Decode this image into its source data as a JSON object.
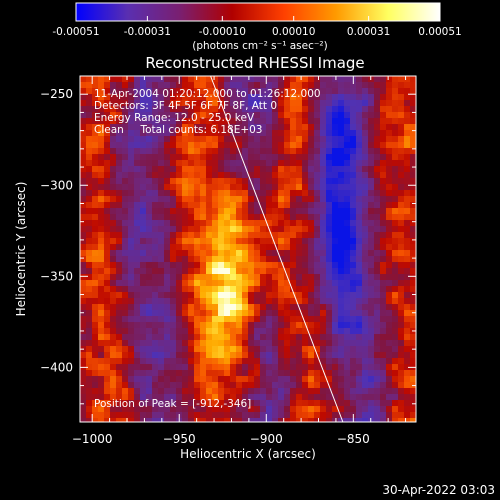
{
  "colorbar": {
    "tick_labels": [
      "-0.00051",
      "-0.00031",
      "-0.00010",
      "0.00010",
      "0.00031",
      "0.00051"
    ],
    "tick_values": [
      -0.00051,
      -0.00031,
      -0.0001,
      0.0001,
      0.00031,
      0.00051
    ],
    "range": [
      -0.00051,
      0.00051
    ],
    "units_label": "(photons cm⁻² s⁻¹ asec⁻²)",
    "colors": [
      "#0000ff",
      "#5a2fb0",
      "#7a1f70",
      "#b00000",
      "#ff4000",
      "#ff9a00",
      "#ffff60",
      "#ffffff"
    ]
  },
  "chart_data": {
    "type": "heatmap",
    "title": "Reconstructed RHESSI Image",
    "xlabel": "Heliocentric X (arcsec)",
    "ylabel": "Heliocentric Y (arcsec)",
    "xlim": [
      -1007,
      -814
    ],
    "ylim": [
      -430,
      -240
    ],
    "x_ticks": [
      -1000,
      -950,
      -900,
      -850
    ],
    "x_tick_labels": [
      "−1000",
      "−950",
      "−900",
      "−850"
    ],
    "y_ticks": [
      -250,
      -300,
      -350,
      -400
    ],
    "y_tick_labels": [
      "−250",
      "−300",
      "−350",
      "−400"
    ],
    "annotations": [
      "11-Apr-2004 01:20:12.000 to 01:26:12.000",
      "Detectors: 3F 4F 5F 6F 7F 8F, Att 0",
      "Energy Range: 12.0 - 25.0 keV",
      "Clean     Total counts: 6.18E+03"
    ],
    "peak_label": "Position of Peak = [-912,-346]",
    "peak": {
      "x": -912,
      "y": -346
    },
    "limb_line": [
      {
        "x": -932,
        "y": -240
      },
      {
        "x": -856,
        "y": -430
      }
    ],
    "colors": {
      "limb": "#ffffff",
      "axes": "#ffffff"
    }
  },
  "footer": {
    "timestamp": "30-Apr-2022 03:03"
  }
}
